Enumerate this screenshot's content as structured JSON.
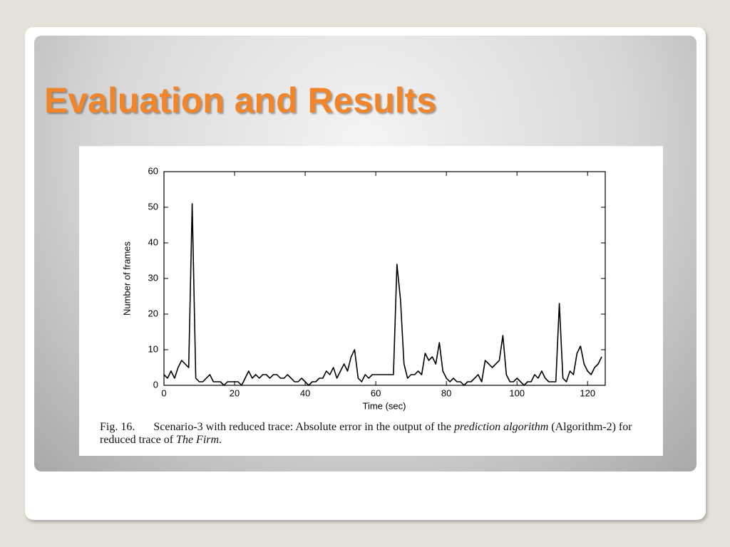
{
  "slide_title": "Evaluation and Results",
  "chart_data": {
    "type": "line",
    "xlabel": "Time (sec)",
    "ylabel": "Number of frames",
    "x": [
      0,
      1,
      2,
      3,
      4,
      5,
      6,
      7,
      8,
      9,
      10,
      11,
      12,
      13,
      14,
      15,
      16,
      17,
      18,
      19,
      20,
      21,
      22,
      23,
      24,
      25,
      26,
      27,
      28,
      29,
      30,
      31,
      32,
      33,
      34,
      35,
      36,
      37,
      38,
      39,
      40,
      41,
      42,
      43,
      44,
      45,
      46,
      47,
      48,
      49,
      50,
      51,
      52,
      53,
      54,
      55,
      56,
      57,
      58,
      59,
      60,
      61,
      62,
      63,
      64,
      65,
      66,
      67,
      68,
      69,
      70,
      71,
      72,
      73,
      74,
      75,
      76,
      77,
      78,
      79,
      80,
      81,
      82,
      83,
      84,
      85,
      86,
      87,
      88,
      89,
      90,
      91,
      92,
      93,
      94,
      95,
      96,
      97,
      98,
      99,
      100,
      101,
      102,
      103,
      104,
      105,
      106,
      107,
      108,
      109,
      110,
      111,
      112,
      113,
      114,
      115,
      116,
      117,
      118,
      119,
      120,
      121,
      122,
      123,
      124
    ],
    "series": [
      {
        "color": "#000000",
        "values": [
          3,
          2,
          4,
          2,
          5,
          7,
          6,
          5,
          51,
          2,
          1,
          1,
          2,
          3,
          1,
          1,
          1,
          0,
          1,
          1,
          1,
          1,
          0,
          2,
          4,
          2,
          3,
          2,
          3,
          3,
          2,
          3,
          3,
          2,
          2,
          3,
          2,
          1,
          1,
          2,
          1,
          0,
          1,
          1,
          2,
          2,
          4,
          3,
          5,
          2,
          4,
          6,
          4,
          8,
          10,
          2,
          1,
          3,
          2,
          3,
          3,
          3,
          3,
          3,
          3,
          3,
          34,
          24,
          6,
          2,
          3,
          3,
          4,
          3,
          9,
          7,
          8,
          6,
          12,
          4,
          2,
          1,
          2,
          1,
          1,
          0,
          1,
          1,
          2,
          3,
          1,
          7,
          6,
          5,
          6,
          7,
          14,
          3,
          1,
          1,
          2,
          1,
          0,
          1,
          1,
          3,
          2,
          4,
          2,
          1,
          1,
          1,
          23,
          2,
          1,
          4,
          3,
          9,
          11,
          6,
          4,
          3,
          5,
          6,
          8
        ]
      }
    ],
    "xlim": [
      0,
      125
    ],
    "ylim": [
      0,
      60
    ],
    "xticks": [
      0,
      20,
      40,
      60,
      80,
      100,
      120
    ],
    "yticks": [
      0,
      10,
      20,
      30,
      40,
      50,
      60
    ]
  },
  "caption": {
    "label": "Fig. 16.",
    "text1": "Scenario-3 with reduced trace: Absolute error in the output of the",
    "italic1": "prediction algorithm",
    "text2": "(Algorithm-2) for reduced trace of",
    "italic2": "The Firm",
    "end": "."
  }
}
